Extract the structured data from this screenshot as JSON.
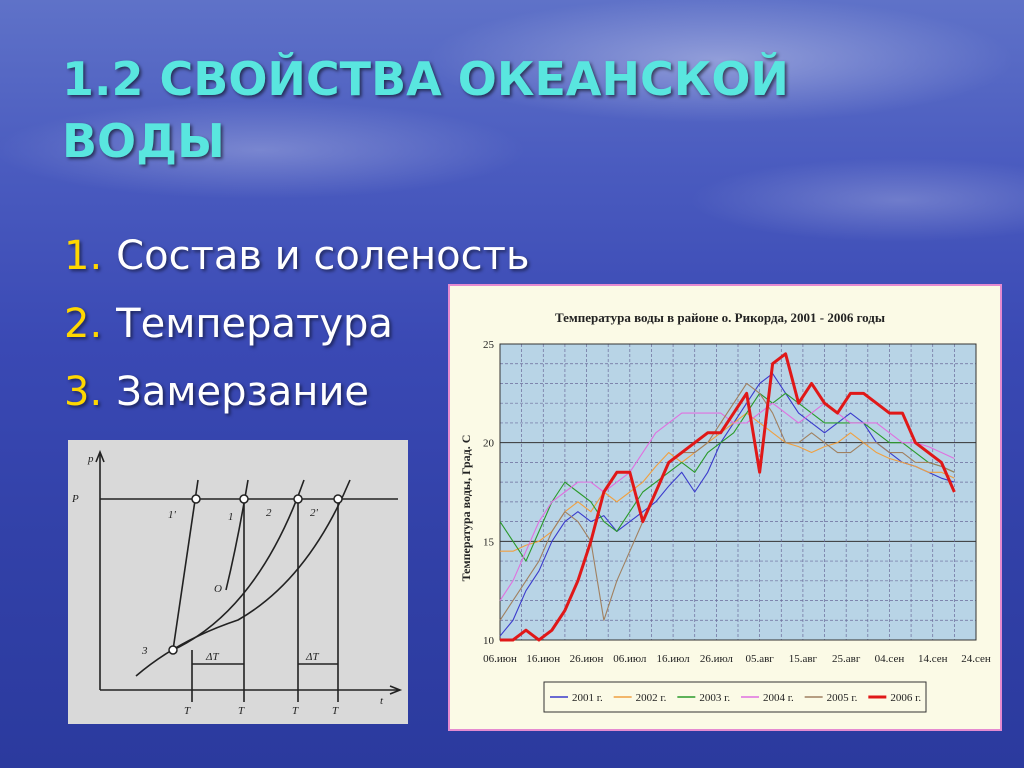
{
  "slide": {
    "title": "1.2 СВОЙСТВА ОКЕАНСКОЙ ВОДЫ",
    "bullets": [
      {
        "num": "1.",
        "text": "Состав и соленость"
      },
      {
        "num": "2.",
        "text": "Температура"
      },
      {
        "num": "3.",
        "text": "Замерзание"
      }
    ]
  },
  "diagram": {
    "p_axis": "p",
    "t_axis": "t",
    "p_level": "P",
    "curve_labels": [
      "1'",
      "1",
      "2",
      "2'",
      "3",
      "O"
    ],
    "delta_labels": [
      "ΔT",
      "ΔT"
    ],
    "bottom_labels": [
      "T",
      "T",
      "T",
      "T"
    ]
  },
  "chart_data": {
    "type": "line",
    "title": "Температура воды в районе о. Рикорда,   2001 - 2006 годы",
    "ylabel": "Температура воды, Град. С",
    "xlabel": "",
    "ylim": [
      10,
      25
    ],
    "yticks": [
      10,
      15,
      20,
      25
    ],
    "x_labels": [
      "06.июн",
      "16.июн",
      "26.июн",
      "06.июл",
      "16.июл",
      "26.июл",
      "05.авг",
      "15.авг",
      "25.авг",
      "04.сен",
      "14.сен",
      "24.сен"
    ],
    "grid": true,
    "legend_position": "bottom",
    "x": [
      0,
      3,
      6,
      9,
      12,
      15,
      18,
      21,
      24,
      27,
      30,
      33,
      36,
      39,
      42,
      45,
      48,
      51,
      54,
      57,
      60,
      63,
      66,
      69,
      72,
      75,
      78,
      81,
      84,
      87,
      90,
      93,
      96,
      99,
      102,
      105
    ],
    "series": [
      {
        "name": "2001 г.",
        "color": "#3b3bcc",
        "values": [
          10.2,
          11.0,
          12.5,
          13.5,
          15.0,
          16.0,
          16.5,
          16.0,
          16.3,
          15.5,
          16.0,
          16.5,
          17.0,
          17.8,
          18.5,
          17.5,
          18.5,
          20.0,
          21.0,
          22.0,
          23.0,
          23.5,
          22.5,
          21.5,
          21.0,
          20.5,
          21.0,
          21.5,
          21.0,
          20.0,
          19.5,
          19.0,
          18.8,
          18.5,
          18.2,
          18.0
        ]
      },
      {
        "name": "2002 г.",
        "color": "#f0a040",
        "values": [
          14.5,
          14.5,
          14.8,
          15.0,
          15.5,
          16.5,
          17.0,
          16.5,
          17.5,
          17.0,
          17.5,
          18.0,
          18.8,
          19.5,
          19.0,
          19.5,
          20.0,
          20.5,
          21.0,
          21.5,
          21.0,
          20.5,
          20.0,
          19.8,
          19.5,
          19.8,
          20.0,
          20.5,
          20.0,
          19.5,
          19.2,
          19.0,
          18.8,
          18.5,
          18.5,
          18.2
        ]
      },
      {
        "name": "2003 г.",
        "color": "#2a9a2a",
        "values": [
          16.0,
          15.0,
          14.0,
          15.5,
          17.0,
          18.0,
          17.5,
          17.0,
          16.0,
          15.5,
          16.5,
          17.5,
          18.0,
          18.5,
          19.0,
          18.5,
          19.5,
          20.0,
          20.5,
          21.5,
          22.5,
          22.0,
          22.5,
          22.0,
          21.5,
          21.0,
          21.0,
          21.0,
          21.0,
          20.5,
          20.0,
          20.0,
          19.5,
          19.0,
          18.8,
          18.5
        ]
      },
      {
        "name": "2004 г.",
        "color": "#e070e0",
        "values": [
          12.0,
          13.0,
          14.5,
          16.0,
          17.0,
          17.5,
          18.0,
          18.0,
          17.5,
          18.0,
          18.5,
          19.5,
          20.5,
          21.0,
          21.5,
          21.5,
          21.5,
          21.5,
          21.0,
          21.0,
          21.5,
          22.0,
          21.5,
          21.0,
          21.5,
          22.0,
          21.5,
          21.0,
          21.0,
          21.0,
          20.5,
          20.0,
          20.0,
          19.8,
          19.5,
          19.2
        ]
      },
      {
        "name": "2005 г.",
        "color": "#a08060",
        "values": [
          11.0,
          12.0,
          13.0,
          14.0,
          15.5,
          16.5,
          16.0,
          15.0,
          11.0,
          13.0,
          14.5,
          16.0,
          17.5,
          19.0,
          19.5,
          19.5,
          20.0,
          21.0,
          22.0,
          23.0,
          22.5,
          21.5,
          20.0,
          20.0,
          20.5,
          20.0,
          19.5,
          19.5,
          20.0,
          20.0,
          19.5,
          19.5,
          19.0,
          19.0,
          18.8,
          18.5
        ]
      },
      {
        "name": "2006 г.",
        "color": "#e01818",
        "values": [
          10.0,
          10.0,
          10.5,
          10.0,
          10.5,
          11.5,
          13.0,
          15.0,
          17.5,
          18.5,
          18.5,
          16.0,
          17.5,
          19.0,
          19.5,
          20.0,
          20.5,
          20.5,
          21.5,
          22.5,
          18.5,
          24.0,
          24.5,
          22.0,
          23.0,
          22.0,
          21.5,
          22.5,
          22.5,
          22.0,
          21.5,
          21.5,
          20.0,
          19.5,
          19.0,
          17.5
        ]
      }
    ]
  }
}
